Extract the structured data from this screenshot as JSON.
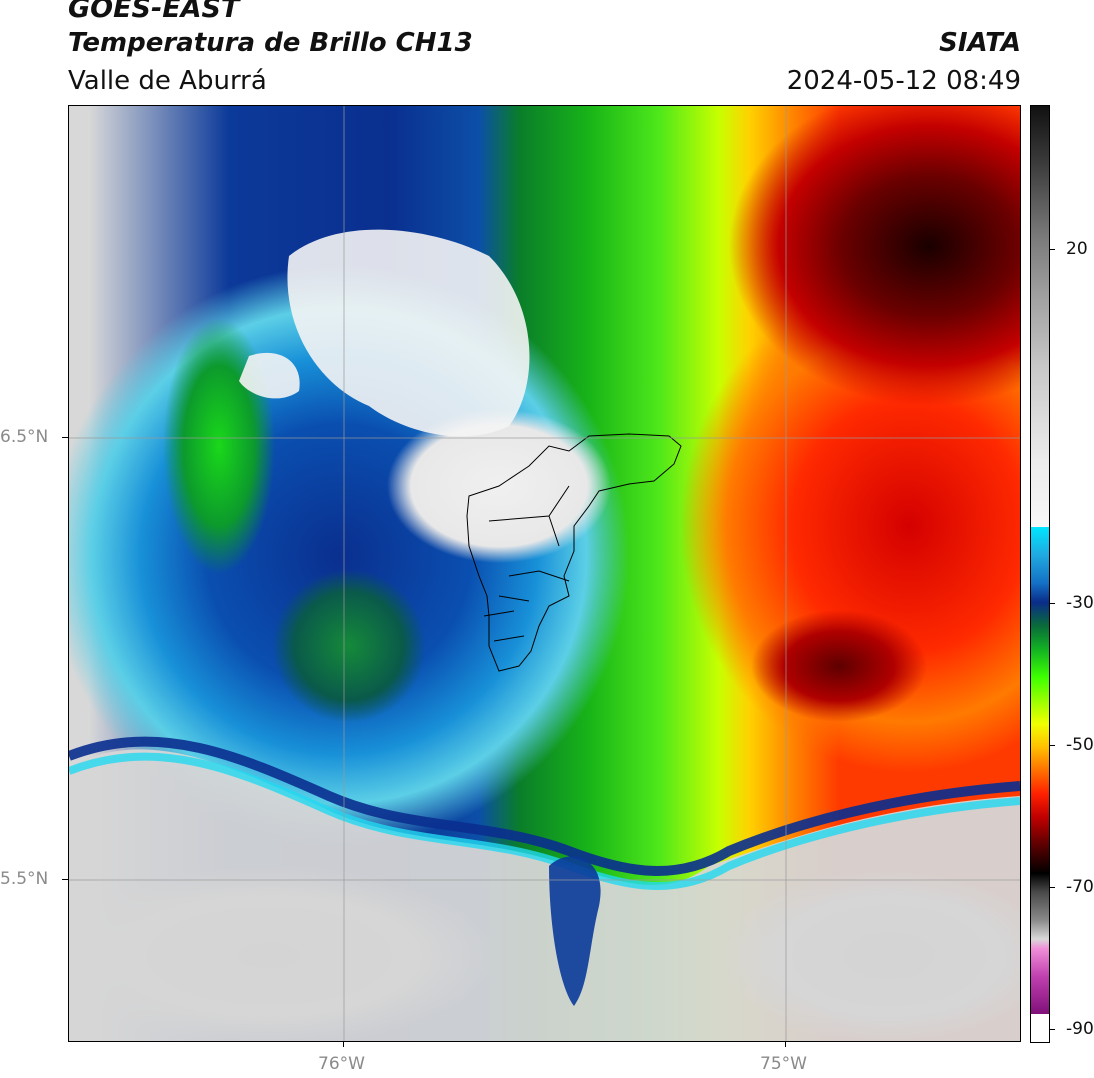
{
  "header": {
    "satellite": "GOES-EAST",
    "product": "Temperatura de Brillo CH13",
    "region": "Valle de Aburrá",
    "brand": "SIATA",
    "datetime": "2024-05-12 08:49"
  },
  "map": {
    "lat_labels": [
      "6.5°N",
      "5.5°N"
    ],
    "lon_labels": [
      "76°W",
      "75°W"
    ],
    "lat_range": [
      5.1,
      7.25
    ],
    "lon_range": [
      -76.62,
      -74.47
    ],
    "boundary_overlay": "Valle de Aburrá municipalities (black outline)"
  },
  "colorbar": {
    "ticks": [
      "20",
      "-30",
      "-50",
      "-70",
      "-90"
    ],
    "units": ""
  },
  "colors": {
    "cold_cloud_top": "#0a2f8f",
    "very_cold": "#ff2a00",
    "coldest": "#1a0000",
    "warm_surface": "#d0d0d0"
  }
}
